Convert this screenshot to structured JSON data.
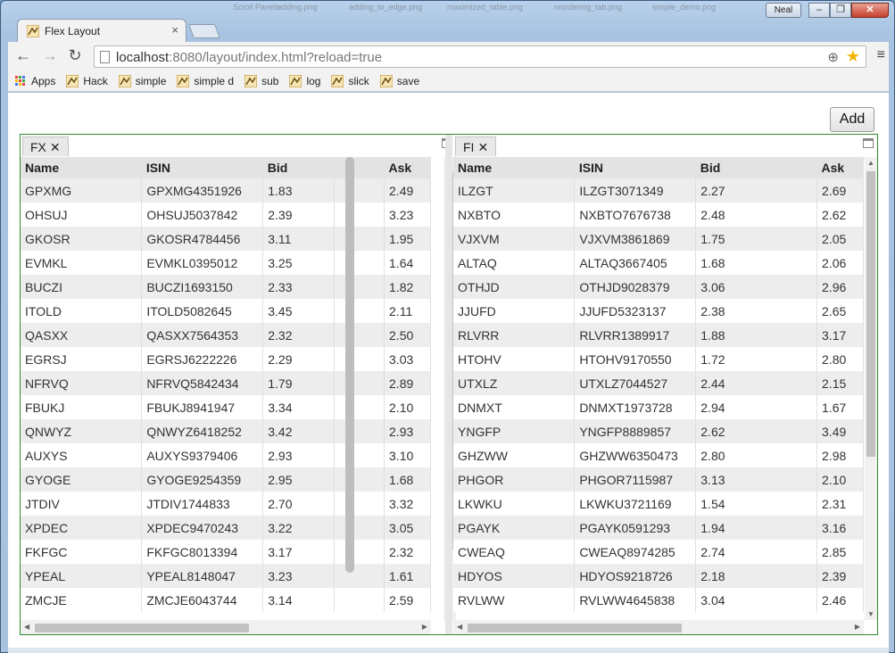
{
  "window": {
    "user_label": "Neal",
    "minimize": "–",
    "restore": "❐",
    "close": "✕",
    "background_tabs": [
      "adding.png",
      "adding_to_edge.png",
      "maximized_table.png",
      "reordering_tab.png",
      "simple_demo.png",
      "Scroll Panels"
    ]
  },
  "tab": {
    "title": "Flex Layout",
    "close": "×"
  },
  "toolbar": {
    "back": "←",
    "forward": "→",
    "reload": "↻",
    "url_host": "localhost",
    "url_rest": ":8080/layout/index.html?reload=true",
    "zoom": "⊕",
    "star": "★",
    "menu": "≡"
  },
  "bookmarks": [
    {
      "label": "Apps",
      "icon": "apps-grid-icon"
    },
    {
      "label": "Hack",
      "icon": "bookmark-icon"
    },
    {
      "label": "simple",
      "icon": "bookmark-icon"
    },
    {
      "label": "simple d",
      "icon": "bookmark-icon"
    },
    {
      "label": "sub",
      "icon": "bookmark-icon"
    },
    {
      "label": "log",
      "icon": "bookmark-icon"
    },
    {
      "label": "slick",
      "icon": "bookmark-icon"
    },
    {
      "label": "save",
      "icon": "bookmark-icon"
    }
  ],
  "add_button": "Add",
  "panels": [
    {
      "name": "FX",
      "close": "✕",
      "columns": [
        "Name",
        "ISIN",
        "Bid",
        "",
        "Ask"
      ],
      "rows": [
        [
          "GPXMG",
          "GPXMG4351926",
          "1.83",
          "",
          "2.49"
        ],
        [
          "OHSUJ",
          "OHSUJ5037842",
          "2.39",
          "",
          "3.23"
        ],
        [
          "GKOSR",
          "GKOSR4784456",
          "3.11",
          "",
          "1.95"
        ],
        [
          "EVMKL",
          "EVMKL0395012",
          "3.25",
          "",
          "1.64"
        ],
        [
          "BUCZI",
          "BUCZI1693150",
          "2.33",
          "",
          "1.82"
        ],
        [
          "ITOLD",
          "ITOLD5082645",
          "3.45",
          "",
          "2.11"
        ],
        [
          "QASXX",
          "QASXX7564353",
          "2.32",
          "",
          "2.50"
        ],
        [
          "EGRSJ",
          "EGRSJ6222226",
          "2.29",
          "",
          "3.03"
        ],
        [
          "NFRVQ",
          "NFRVQ5842434",
          "1.79",
          "",
          "2.89"
        ],
        [
          "FBUKJ",
          "FBUKJ8941947",
          "3.34",
          "",
          "2.10"
        ],
        [
          "QNWYZ",
          "QNWYZ6418252",
          "3.42",
          "",
          "2.93"
        ],
        [
          "AUXYS",
          "AUXYS9379406",
          "2.93",
          "",
          "3.10"
        ],
        [
          "GYOGE",
          "GYOGE9254359",
          "2.95",
          "",
          "1.68"
        ],
        [
          "JTDIV",
          "JTDIV1744833",
          "2.70",
          "",
          "3.32"
        ],
        [
          "XPDEC",
          "XPDEC9470243",
          "3.22",
          "",
          "3.05"
        ],
        [
          "FKFGC",
          "FKFGC8013394",
          "3.17",
          "",
          "2.32"
        ],
        [
          "YPEAL",
          "YPEAL8148047",
          "3.23",
          "",
          "1.61"
        ],
        [
          "ZMCJE",
          "ZMCJE6043744",
          "3.14",
          "",
          "2.59"
        ]
      ]
    },
    {
      "name": "FI",
      "close": "✕",
      "columns": [
        "Name",
        "ISIN",
        "Bid",
        "Ask"
      ],
      "rows": [
        [
          "ILZGT",
          "ILZGT3071349",
          "2.27",
          "2.69"
        ],
        [
          "NXBTO",
          "NXBTO7676738",
          "2.48",
          "2.62"
        ],
        [
          "VJXVM",
          "VJXVM3861869",
          "1.75",
          "2.05"
        ],
        [
          "ALTAQ",
          "ALTAQ3667405",
          "1.68",
          "2.06"
        ],
        [
          "OTHJD",
          "OTHJD9028379",
          "3.06",
          "2.96"
        ],
        [
          "JJUFD",
          "JJUFD5323137",
          "2.38",
          "2.65"
        ],
        [
          "RLVRR",
          "RLVRR1389917",
          "1.88",
          "3.17"
        ],
        [
          "HTOHV",
          "HTOHV9170550",
          "1.72",
          "2.80"
        ],
        [
          "UTXLZ",
          "UTXLZ7044527",
          "2.44",
          "2.15"
        ],
        [
          "DNMXT",
          "DNMXT1973728",
          "2.94",
          "1.67"
        ],
        [
          "YNGFP",
          "YNGFP8889857",
          "2.62",
          "3.49"
        ],
        [
          "GHZWW",
          "GHZWW6350473",
          "2.80",
          "2.98"
        ],
        [
          "PHGOR",
          "PHGOR7115987",
          "3.13",
          "2.10"
        ],
        [
          "LKWKU",
          "LKWKU3721169",
          "1.54",
          "2.31"
        ],
        [
          "PGAYK",
          "PGAYK0591293",
          "1.94",
          "3.16"
        ],
        [
          "CWEAQ",
          "CWEAQ8974285",
          "2.74",
          "2.85"
        ],
        [
          "HDYOS",
          "HDYOS9218726",
          "2.18",
          "2.39"
        ],
        [
          "RVLWW",
          "RVLWW4645838",
          "3.04",
          "2.46"
        ]
      ]
    }
  ]
}
